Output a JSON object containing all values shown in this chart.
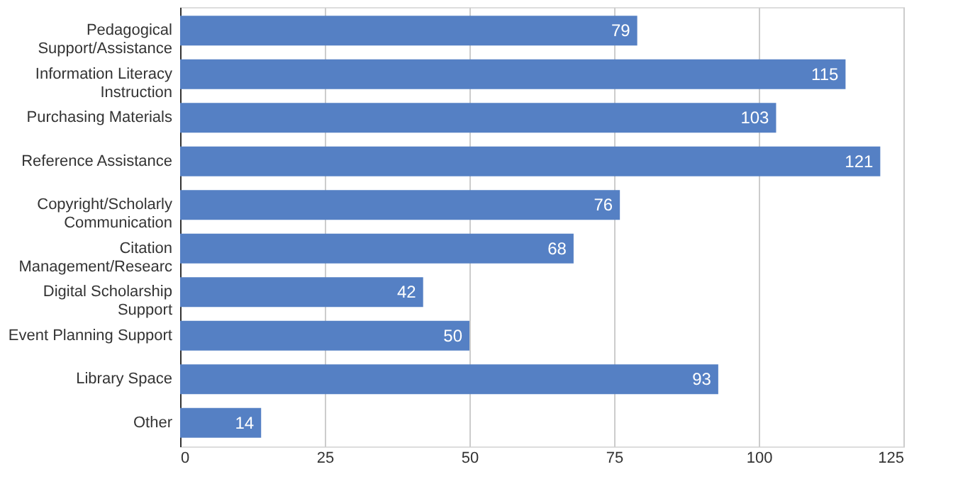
{
  "chart_data": {
    "type": "bar",
    "orientation": "horizontal",
    "categories": [
      "Pedagogical\nSupport/Assistance",
      "Information Literacy\nInstruction",
      "Purchasing Materials",
      "Reference Assistance",
      "Copyright/Scholarly\nCommunication",
      "Citation\nManagement/Researc",
      "Digital Scholarship\nSupport",
      "Event Planning Support",
      "Library Space",
      "Other"
    ],
    "values": [
      79,
      115,
      103,
      121,
      76,
      68,
      42,
      50,
      93,
      14
    ],
    "color": "#5580c4",
    "xlim": [
      0,
      125
    ],
    "xticks": [
      0,
      25,
      50,
      75,
      100,
      125
    ],
    "grid": "x",
    "data_labels": true
  }
}
